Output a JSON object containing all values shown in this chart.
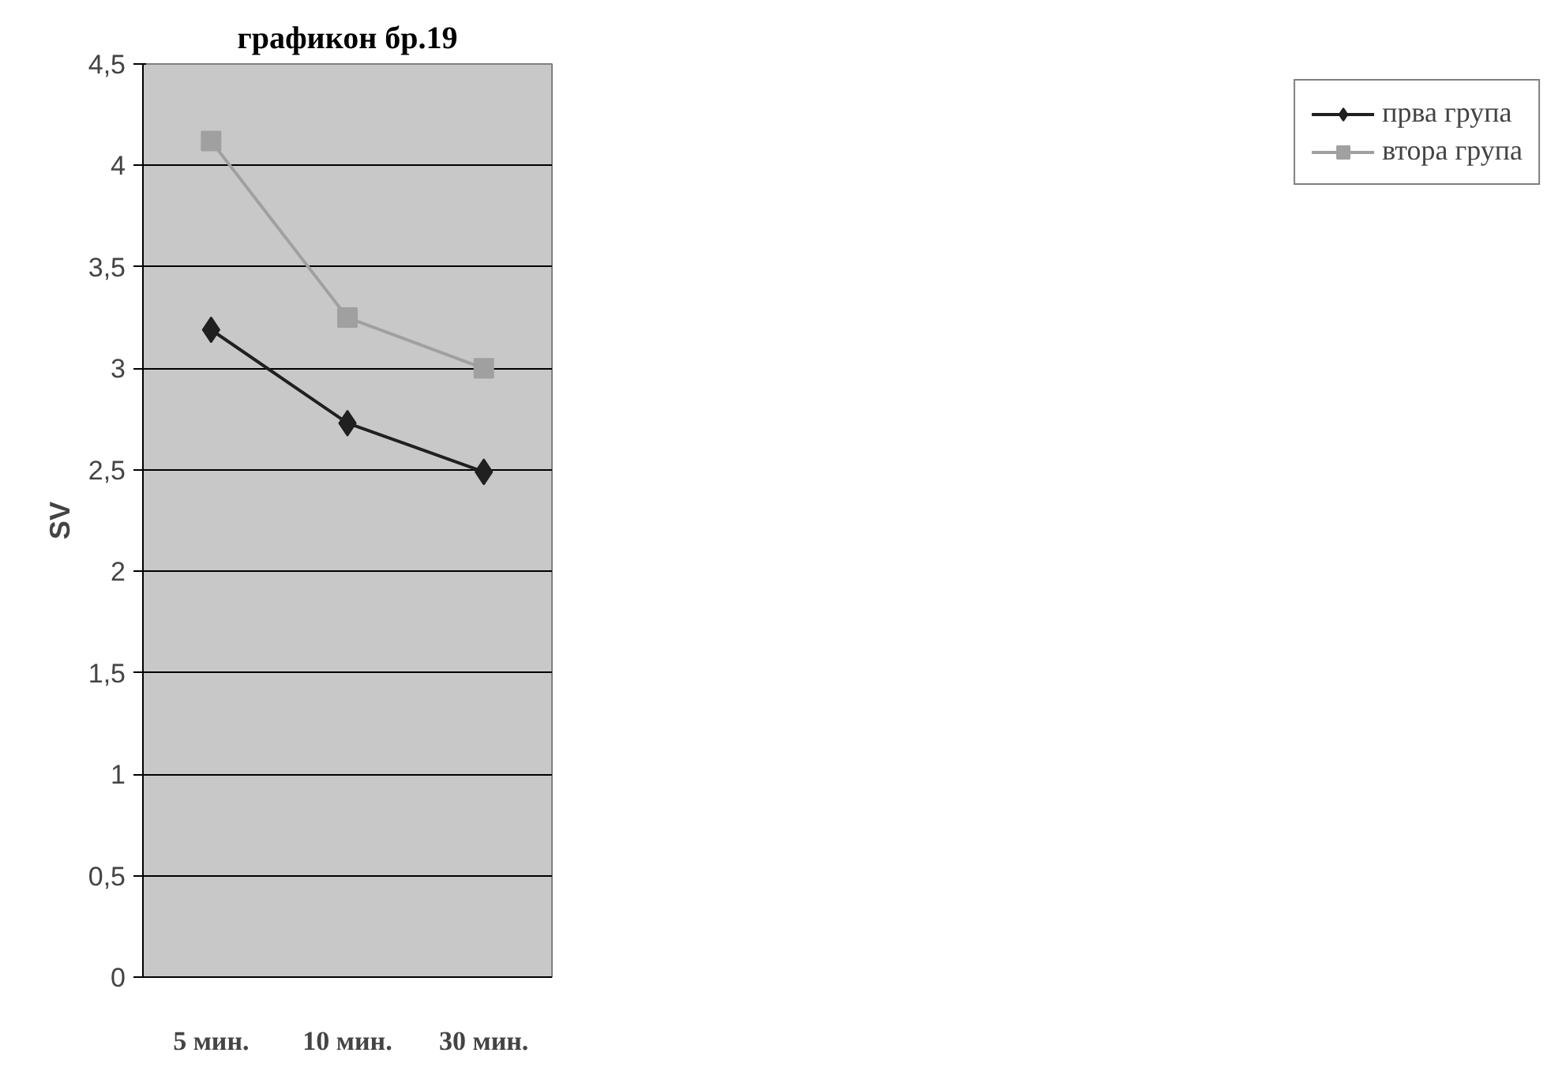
{
  "chart_data": {
    "type": "line",
    "title": "графикон бр.19",
    "ylabel": "SV",
    "categories": [
      "5 мин.",
      "10 мин.",
      "30 мин."
    ],
    "series": [
      {
        "name": "прва група",
        "color": "#202020",
        "marker": "diamond",
        "values": [
          3.19,
          2.73,
          2.49
        ]
      },
      {
        "name": "втора група",
        "color": "#a0a0a0",
        "marker": "square",
        "values": [
          4.12,
          3.25,
          3.0
        ]
      }
    ],
    "ylim": [
      0,
      4.5
    ],
    "yticks": [
      0,
      {
        "value": 0.5,
        "label": "0,5"
      },
      1,
      {
        "value": 1.5,
        "label": "1,5"
      },
      2,
      {
        "value": 2.5,
        "label": "2,5"
      },
      3,
      {
        "value": 3.5,
        "label": "3,5"
      },
      4,
      {
        "value": 4.5,
        "label": "4,5"
      }
    ],
    "grid": "y",
    "legend": "right",
    "line_style": "solid"
  }
}
